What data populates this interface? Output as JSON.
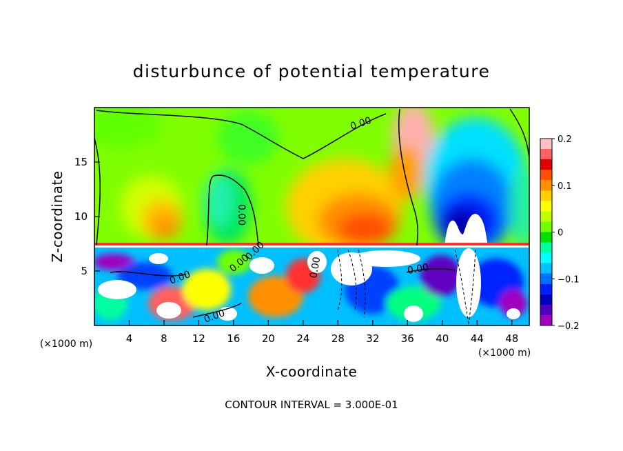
{
  "chart_data": {
    "type": "heatmap",
    "title": "disturbunce of potential temperature",
    "xlabel": "X-coordinate",
    "ylabel": "Z-coordinate",
    "x_unit": "(×1000 m)",
    "y_unit": "(×1000 m)",
    "xlim": [
      0,
      50
    ],
    "ylim": [
      0,
      20
    ],
    "x_ticks": [
      4,
      8,
      12,
      16,
      20,
      24,
      28,
      32,
      36,
      40,
      44,
      48
    ],
    "y_ticks": [
      5,
      10,
      15
    ],
    "x_tick_labels": [
      "4",
      "8",
      "12",
      "16",
      "20",
      "24",
      "28",
      "32",
      "36",
      "40",
      "44",
      "48"
    ],
    "y_tick_labels": [
      "5",
      "10",
      "15"
    ],
    "colorbar": {
      "range": [
        -0.2,
        0.2
      ],
      "tick_values": [
        0.2,
        0.1,
        0,
        -0.1,
        -0.2
      ],
      "tick_labels": [
        "0.2",
        "0.1",
        "0",
        "−0.1",
        "−0.2"
      ],
      "colors": [
        "#ffc0c0",
        "#ff6060",
        "#e00000",
        "#ff5000",
        "#ff9000",
        "#ffd000",
        "#ffff00",
        "#c0ff00",
        "#70ff00",
        "#00e000",
        "#00ffa0",
        "#00ffff",
        "#00c0ff",
        "#0070ff",
        "#0020ff",
        "#0000c0",
        "#5000c0",
        "#a000c0"
      ]
    },
    "contour_labels": [
      "0.00",
      "0.00",
      "0.00",
      "0.00",
      "0.00",
      "0.00",
      "0.00",
      "0.00"
    ],
    "contour_interval": "CONTOUR INTERVAL = 3.000E-01",
    "regions": [
      {
        "note": "upper layer, z>7.5",
        "x_range": [
          0,
          50
        ],
        "value": 0.0
      },
      {
        "x": 8,
        "z": 10,
        "value": 0.1
      },
      {
        "x": 30,
        "z": 10,
        "value": 0.14
      },
      {
        "x": 38,
        "z": 14,
        "value": 0.12
      },
      {
        "x": 15,
        "z": 10,
        "value": 0.02
      },
      {
        "x": 42,
        "z": 11,
        "value": -0.19
      },
      {
        "x": 44,
        "z": 11,
        "value": -0.2
      },
      {
        "x": 43,
        "z": 14,
        "value": -0.12
      }
    ]
  }
}
